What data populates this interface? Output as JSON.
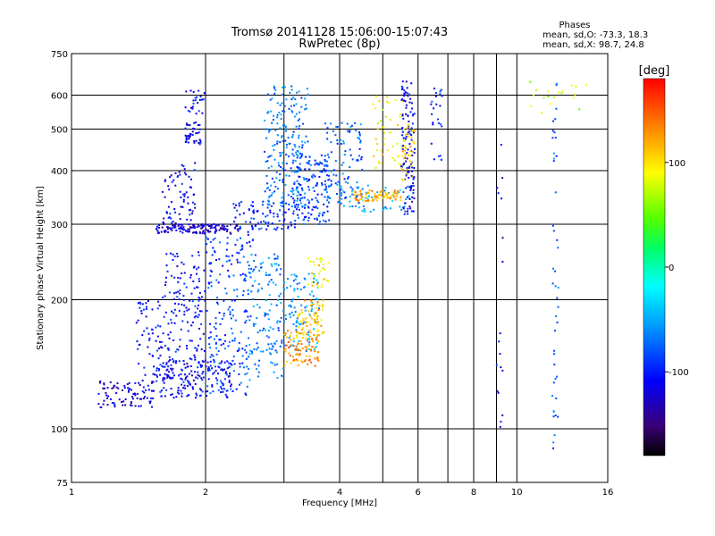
{
  "chart_data": {
    "type": "scatter",
    "title": "Tromsø 20141128 15:06:00-15:07:43",
    "subtitle": "RwPretec (8p)",
    "xlabel": "Frequency [MHz]",
    "ylabel": "Stationary phase Virtual Height [km]",
    "x_scale": "log",
    "y_scale": "log",
    "xlim": [
      1,
      16
    ],
    "ylim": [
      75,
      750
    ],
    "x_ticks": [
      1,
      2,
      4,
      6,
      8,
      10,
      16
    ],
    "y_ticks": [
      75,
      100,
      200,
      300,
      400,
      500,
      600,
      750
    ],
    "x_gridlines": [
      1,
      2,
      3,
      4,
      5,
      6,
      7,
      8,
      9,
      10,
      16
    ],
    "y_gridlines": [
      100,
      200,
      300,
      400,
      500,
      600
    ],
    "grid": true,
    "stats": {
      "heading": "Phases",
      "line1": "mean, sd,O: -73.3, 18.3",
      "line2": "mean, sd,X:  98.7, 24.8"
    },
    "colorbar": {
      "label": "[deg]",
      "range": [
        -180,
        180
      ],
      "ticks": [
        100,
        0,
        -100
      ],
      "placement": "right"
    },
    "series": [
      {
        "values_note": "",
        "clusters": [
          {
            "f": [
              1.15,
              1.55
            ],
            "h": [
              112,
              130
            ],
            "phase": -120,
            "n": 90
          },
          {
            "f": [
              1.55,
              2.3
            ],
            "h": [
              118,
              145
            ],
            "phase": -110,
            "n": 160
          },
          {
            "f": [
              1.4,
              2.0
            ],
            "h": [
              130,
              200
            ],
            "phase": -105,
            "n": 160
          },
          {
            "f": [
              1.6,
              2.0
            ],
            "h": [
              200,
              260
            ],
            "phase": -105,
            "n": 60
          },
          {
            "f": [
              1.55,
              2.4
            ],
            "h": [
              285,
              300
            ],
            "phase": -125,
            "n": 140
          },
          {
            "f": [
              1.6,
              1.9
            ],
            "h": [
              300,
              420
            ],
            "phase": -110,
            "n": 70
          },
          {
            "f": [
              1.8,
              1.95
            ],
            "h": [
              460,
              520
            ],
            "phase": -115,
            "n": 40
          },
          {
            "f": [
              1.8,
              2.0
            ],
            "h": [
              540,
              620
            ],
            "phase": -105,
            "n": 25
          },
          {
            "f": [
              2.0,
              2.5
            ],
            "h": [
              120,
              200
            ],
            "phase": -85,
            "n": 120
          },
          {
            "f": [
              2.0,
              2.6
            ],
            "h": [
              200,
              290
            ],
            "phase": -90,
            "n": 90
          },
          {
            "f": [
              2.3,
              3.2
            ],
            "h": [
              290,
              340
            ],
            "phase": -95,
            "n": 90
          },
          {
            "f": [
              2.5,
              3.0
            ],
            "h": [
              130,
              260
            ],
            "phase": -65,
            "n": 130
          },
          {
            "f": [
              2.7,
              3.4
            ],
            "h": [
              330,
              630
            ],
            "phase": -70,
            "n": 220
          },
          {
            "f": [
              3.2,
              3.8
            ],
            "h": [
              300,
              440
            ],
            "phase": -85,
            "n": 140
          },
          {
            "f": [
              3.0,
              3.6
            ],
            "h": [
              150,
              230
            ],
            "phase": -55,
            "n": 100
          },
          {
            "f": [
              3.0,
              3.6
            ],
            "h": [
              140,
              170
            ],
            "phase": 130,
            "n": 90
          },
          {
            "f": [
              3.2,
              3.7
            ],
            "h": [
              160,
              200
            ],
            "phase": 110,
            "n": 70
          },
          {
            "f": [
              3.4,
              3.8
            ],
            "h": [
              210,
              250
            ],
            "phase": 100,
            "n": 30
          },
          {
            "f": [
              3.7,
              4.5
            ],
            "h": [
              330,
              520
            ],
            "phase": -75,
            "n": 100
          },
          {
            "f": [
              4.0,
              5.8
            ],
            "h": [
              320,
              370
            ],
            "phase": -50,
            "n": 60
          },
          {
            "f": [
              4.3,
              5.5
            ],
            "h": [
              340,
              360
            ],
            "phase": 120,
            "n": 80
          },
          {
            "f": [
              4.7,
              5.6
            ],
            "h": [
              400,
              600
            ],
            "phase": 90,
            "n": 50
          },
          {
            "f": [
              5.5,
              5.9
            ],
            "h": [
              310,
              650
            ],
            "phase": -110,
            "n": 120
          },
          {
            "f": [
              5.5,
              5.9
            ],
            "h": [
              380,
              520
            ],
            "phase": 115,
            "n": 40
          },
          {
            "f": [
              6.4,
              6.8
            ],
            "h": [
              420,
              650
            ],
            "phase": -100,
            "n": 25
          },
          {
            "f": [
              9.0,
              9.3
            ],
            "h": [
              100,
              460
            ],
            "phase": -105,
            "n": 18
          },
          {
            "f": [
              12.0,
              12.4
            ],
            "h": [
              90,
              640
            ],
            "phase": -75,
            "n": 45
          },
          {
            "f": [
              10.5,
              14.5
            ],
            "h": [
              540,
              650
            ],
            "phase": 70,
            "n": 20
          }
        ]
      }
    ]
  }
}
